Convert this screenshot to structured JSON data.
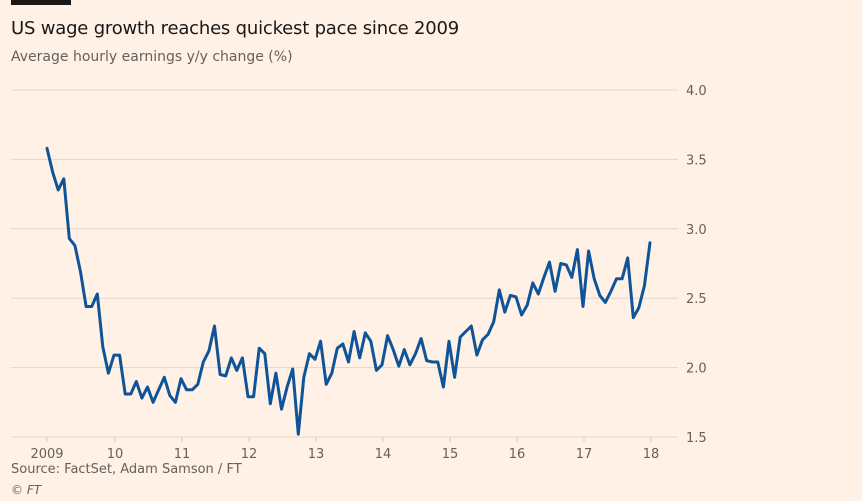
{
  "header": {
    "title": "US wage growth reaches quickest pace since 2009",
    "subtitle": "Average hourly earnings y/y change (%)"
  },
  "footer": {
    "source": "Source: FactSet, Adam Samson / FT",
    "copyright": "© FT"
  },
  "colors": {
    "background": "#fff1e5",
    "line": "#0f5499",
    "grid": "#e3d6cb",
    "text": "#66605c"
  },
  "chart_data": {
    "type": "line",
    "title": "US wage growth reaches quickest pace since 2009",
    "subtitle": "Average hourly earnings y/y change (%)",
    "xlabel": "",
    "ylabel": "",
    "ylim": [
      1.5,
      4.0
    ],
    "yticks": [
      4.0,
      3.5,
      3.0,
      2.5,
      2.0,
      1.5
    ],
    "ytick_labels": [
      "4.0",
      "3.5",
      "3.0",
      "2.5",
      "2.0",
      "1.5"
    ],
    "yaxis_position": "right",
    "grid": true,
    "xticks": [
      {
        "label": "2009",
        "year": 2009
      },
      {
        "label": "10",
        "year": 2010
      },
      {
        "label": "11",
        "year": 2011
      },
      {
        "label": "12",
        "year": 2012
      },
      {
        "label": "13",
        "year": 2013
      },
      {
        "label": "14",
        "year": 2014
      },
      {
        "label": "15",
        "year": 2015
      },
      {
        "label": "16",
        "year": 2016
      },
      {
        "label": "17",
        "year": 2017
      },
      {
        "label": "18",
        "year": 2018
      }
    ],
    "x_start": "2009-01",
    "frequency": "monthly",
    "series": [
      {
        "name": "Average hourly earnings y/y change (%)",
        "values": [
          3.58,
          3.41,
          3.28,
          3.36,
          2.93,
          2.88,
          2.69,
          2.44,
          2.44,
          2.53,
          2.15,
          1.96,
          2.09,
          2.09,
          1.81,
          1.81,
          1.9,
          1.78,
          1.86,
          1.75,
          1.84,
          1.93,
          1.8,
          1.75,
          1.92,
          1.84,
          1.84,
          1.88,
          2.04,
          2.12,
          2.3,
          1.95,
          1.94,
          2.07,
          1.98,
          2.07,
          1.79,
          1.79,
          2.14,
          2.1,
          1.74,
          1.96,
          1.7,
          1.86,
          1.99,
          1.52,
          1.93,
          2.1,
          2.06,
          2.19,
          1.88,
          1.96,
          2.14,
          2.17,
          2.04,
          2.26,
          2.07,
          2.25,
          2.19,
          1.98,
          2.02,
          2.23,
          2.13,
          2.01,
          2.13,
          2.02,
          2.1,
          2.21,
          2.05,
          2.04,
          2.04,
          1.86,
          2.19,
          1.93,
          2.22,
          2.26,
          2.3,
          2.09,
          2.2,
          2.24,
          2.33,
          2.56,
          2.4,
          2.52,
          2.51,
          2.38,
          2.45,
          2.61,
          2.53,
          2.65,
          2.76,
          2.55,
          2.75,
          2.74,
          2.65,
          2.85,
          2.44,
          2.84,
          2.64,
          2.52,
          2.47,
          2.55,
          2.64,
          2.64,
          2.79,
          2.36,
          2.43,
          2.59,
          2.9
        ]
      }
    ]
  }
}
